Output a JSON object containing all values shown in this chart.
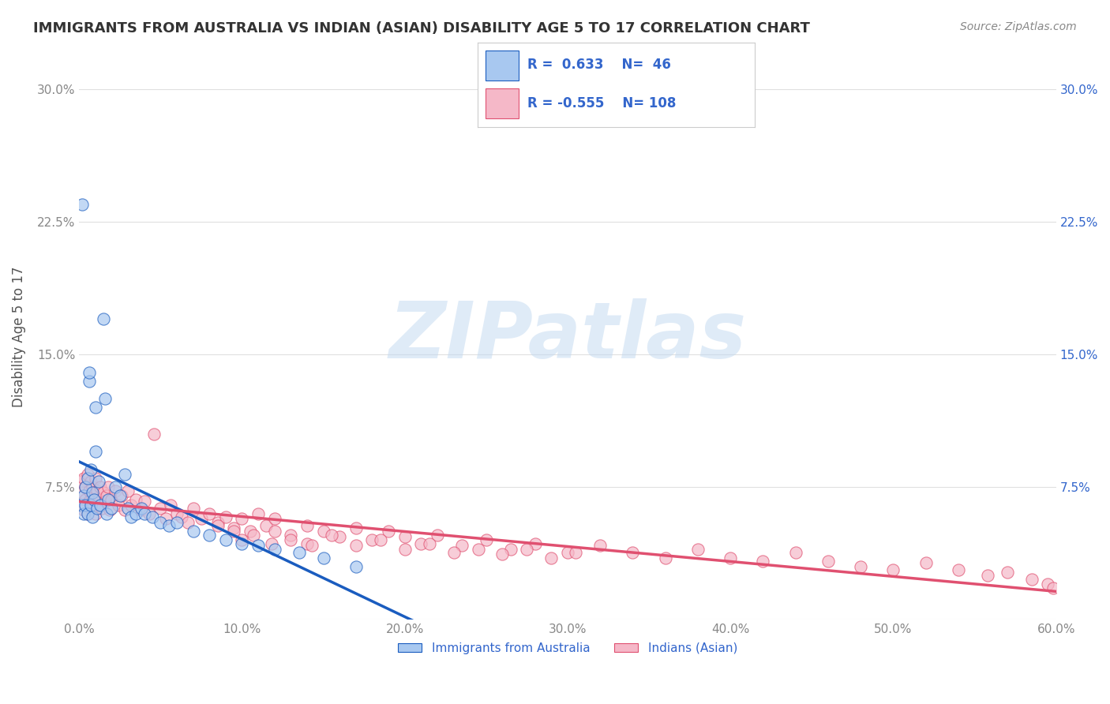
{
  "title": "IMMIGRANTS FROM AUSTRALIA VS INDIAN (ASIAN) DISABILITY AGE 5 TO 17 CORRELATION CHART",
  "source_text": "Source: ZipAtlas.com",
  "xlabel": "",
  "ylabel": "Disability Age 5 to 17",
  "xlim": [
    0.0,
    0.6
  ],
  "ylim": [
    0.0,
    0.32
  ],
  "yticks": [
    0.0,
    0.075,
    0.15,
    0.225,
    0.3
  ],
  "ytick_labels": [
    "",
    "7.5%",
    "15.0%",
    "22.5%",
    "30.0%"
  ],
  "xticks": [
    0.0,
    0.1,
    0.2,
    0.3,
    0.4,
    0.5,
    0.6
  ],
  "xtick_labels": [
    "0.0%",
    "10.0%",
    "20.0%",
    "30.0%",
    "40.0%",
    "50.0%",
    "60.0%"
  ],
  "australia_R": 0.633,
  "australia_N": 46,
  "india_R": -0.555,
  "india_N": 108,
  "australia_color": "#a8c8f0",
  "australia_line_color": "#1a5cbf",
  "india_color": "#f5b8c8",
  "india_line_color": "#e05070",
  "watermark_text": "ZIPatlas",
  "watermark_color": "#c0d8f0",
  "background_color": "#ffffff",
  "grid_color": "#e0e0e0",
  "title_color": "#333333",
  "axis_label_color": "#555555",
  "tick_label_color": "#888888",
  "legend_R_color": "#3366cc",
  "australia_scatter_x": [
    0.001,
    0.002,
    0.003,
    0.003,
    0.004,
    0.004,
    0.005,
    0.005,
    0.006,
    0.006,
    0.007,
    0.007,
    0.008,
    0.008,
    0.009,
    0.01,
    0.01,
    0.011,
    0.012,
    0.013,
    0.015,
    0.016,
    0.017,
    0.018,
    0.02,
    0.022,
    0.025,
    0.028,
    0.03,
    0.032,
    0.035,
    0.038,
    0.04,
    0.045,
    0.05,
    0.055,
    0.06,
    0.07,
    0.08,
    0.09,
    0.1,
    0.11,
    0.12,
    0.135,
    0.15,
    0.17
  ],
  "australia_scatter_y": [
    0.065,
    0.235,
    0.06,
    0.07,
    0.065,
    0.075,
    0.06,
    0.08,
    0.135,
    0.14,
    0.065,
    0.085,
    0.058,
    0.072,
    0.068,
    0.12,
    0.095,
    0.063,
    0.078,
    0.065,
    0.17,
    0.125,
    0.06,
    0.068,
    0.063,
    0.075,
    0.07,
    0.082,
    0.063,
    0.058,
    0.06,
    0.063,
    0.06,
    0.058,
    0.055,
    0.053,
    0.055,
    0.05,
    0.048,
    0.045,
    0.043,
    0.042,
    0.04,
    0.038,
    0.035,
    0.03
  ],
  "india_scatter_x": [
    0.001,
    0.002,
    0.002,
    0.003,
    0.003,
    0.004,
    0.004,
    0.005,
    0.005,
    0.006,
    0.006,
    0.007,
    0.007,
    0.008,
    0.008,
    0.009,
    0.01,
    0.01,
    0.011,
    0.012,
    0.013,
    0.014,
    0.015,
    0.016,
    0.017,
    0.018,
    0.019,
    0.02,
    0.022,
    0.024,
    0.026,
    0.028,
    0.03,
    0.032,
    0.035,
    0.038,
    0.04,
    0.043,
    0.046,
    0.05,
    0.053,
    0.056,
    0.06,
    0.063,
    0.067,
    0.07,
    0.075,
    0.08,
    0.085,
    0.09,
    0.095,
    0.1,
    0.105,
    0.11,
    0.115,
    0.12,
    0.13,
    0.14,
    0.15,
    0.16,
    0.17,
    0.18,
    0.19,
    0.2,
    0.21,
    0.22,
    0.235,
    0.25,
    0.265,
    0.28,
    0.3,
    0.32,
    0.34,
    0.36,
    0.38,
    0.4,
    0.42,
    0.44,
    0.46,
    0.48,
    0.5,
    0.52,
    0.54,
    0.558,
    0.57,
    0.585,
    0.595,
    0.598,
    0.1,
    0.12,
    0.14,
    0.155,
    0.17,
    0.185,
    0.2,
    0.215,
    0.23,
    0.245,
    0.26,
    0.275,
    0.29,
    0.305,
    0.085,
    0.095,
    0.107,
    0.118,
    0.13,
    0.143
  ],
  "india_scatter_y": [
    0.078,
    0.065,
    0.072,
    0.08,
    0.062,
    0.075,
    0.068,
    0.082,
    0.06,
    0.073,
    0.067,
    0.078,
    0.063,
    0.07,
    0.075,
    0.065,
    0.08,
    0.06,
    0.073,
    0.068,
    0.075,
    0.063,
    0.072,
    0.067,
    0.07,
    0.075,
    0.062,
    0.068,
    0.073,
    0.065,
    0.07,
    0.062,
    0.073,
    0.065,
    0.068,
    0.062,
    0.067,
    0.06,
    0.105,
    0.063,
    0.057,
    0.065,
    0.06,
    0.058,
    0.055,
    0.063,
    0.057,
    0.06,
    0.055,
    0.058,
    0.052,
    0.057,
    0.05,
    0.06,
    0.053,
    0.057,
    0.048,
    0.053,
    0.05,
    0.047,
    0.052,
    0.045,
    0.05,
    0.047,
    0.043,
    0.048,
    0.042,
    0.045,
    0.04,
    0.043,
    0.038,
    0.042,
    0.038,
    0.035,
    0.04,
    0.035,
    0.033,
    0.038,
    0.033,
    0.03,
    0.028,
    0.032,
    0.028,
    0.025,
    0.027,
    0.023,
    0.02,
    0.018,
    0.045,
    0.05,
    0.043,
    0.048,
    0.042,
    0.045,
    0.04,
    0.043,
    0.038,
    0.04,
    0.037,
    0.04,
    0.035,
    0.038,
    0.053,
    0.05,
    0.048,
    0.043,
    0.045,
    0.042
  ]
}
